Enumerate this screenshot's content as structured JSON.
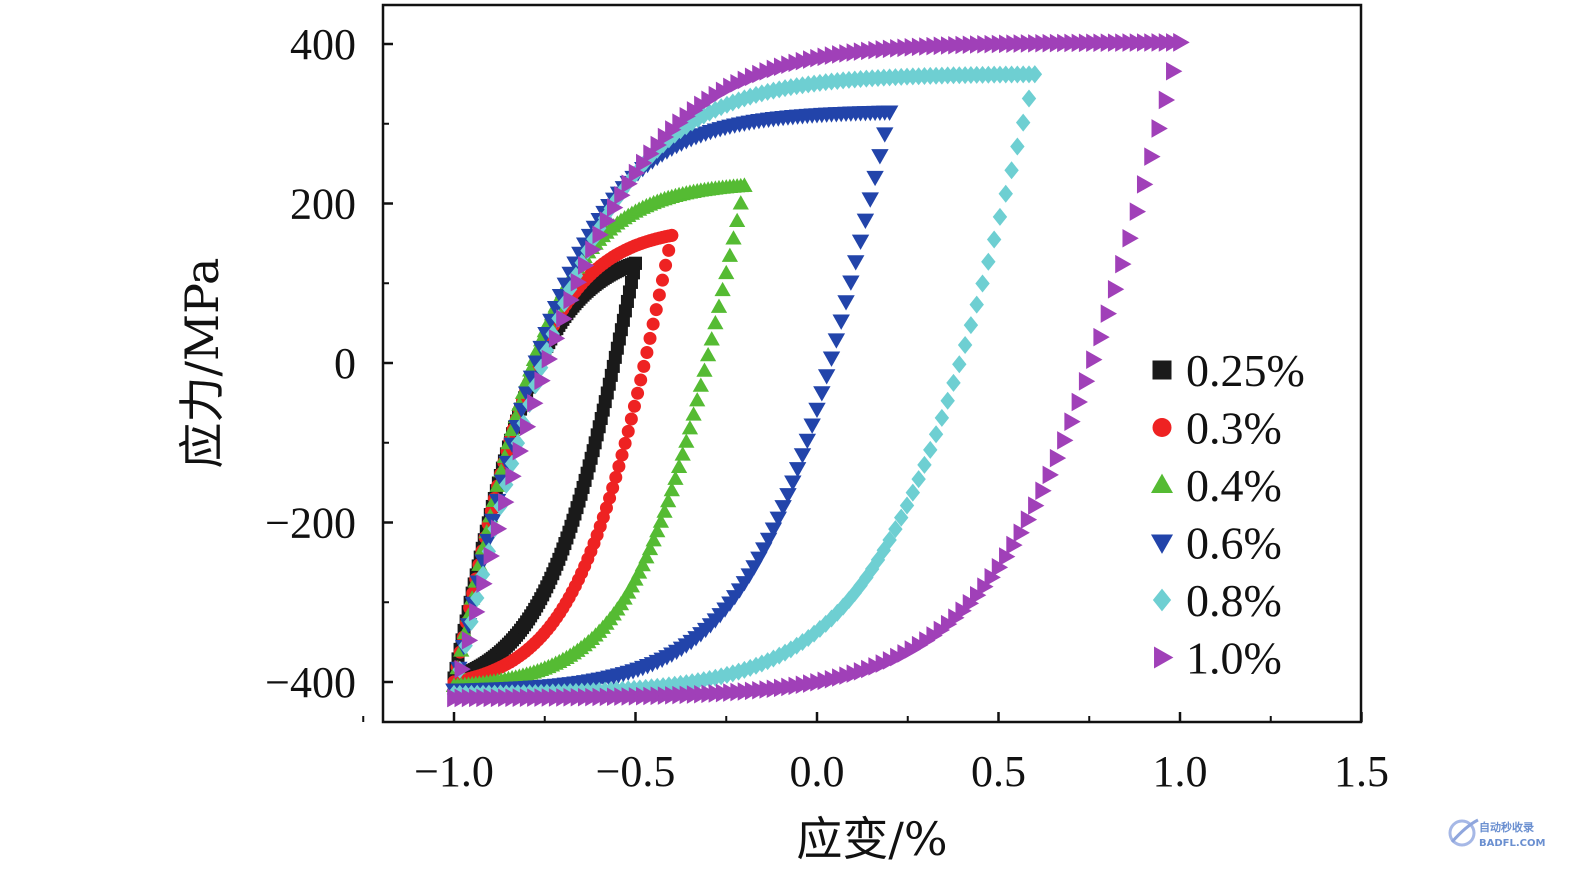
{
  "chart_data": {
    "type": "scatter",
    "xlabel": "应变/%",
    "ylabel": "应力/MPa",
    "xlim": [
      -1.2,
      1.5
    ],
    "ylim": [
      -450,
      450
    ],
    "x_ticks": [
      {
        "value": -1.0,
        "label": "−1.0"
      },
      {
        "value": -0.5,
        "label": "−0.5"
      },
      {
        "value": 0.0,
        "label": "0.0"
      },
      {
        "value": 0.5,
        "label": "0.5"
      },
      {
        "value": 1.0,
        "label": "1.0"
      },
      {
        "value": 1.5,
        "label": "1.5"
      }
    ],
    "y_ticks": [
      {
        "value": -400,
        "label": "−400"
      },
      {
        "value": -200,
        "label": "−200"
      },
      {
        "value": 0,
        "label": "0"
      },
      {
        "value": 200,
        "label": "200"
      },
      {
        "value": 400,
        "label": "400"
      }
    ],
    "legend_position": "lower-right",
    "grid": false,
    "series": [
      {
        "name": "0.25%",
        "marker": "square",
        "color": "#1a1a1a",
        "x_max": -0.5,
        "y_max": 125,
        "x_min": -1.0,
        "y_min": -395,
        "point_count": 90
      },
      {
        "name": "0.3%",
        "marker": "circle",
        "color": "#ee2222",
        "x_max": -0.4,
        "y_max": 160,
        "x_min": -1.0,
        "y_min": -400,
        "point_count": 70
      },
      {
        "name": "0.4%",
        "marker": "triangle-up",
        "color": "#55bb33",
        "x_max": -0.2,
        "y_max": 222,
        "x_min": -1.0,
        "y_min": -405,
        "point_count": 80
      },
      {
        "name": "0.6%",
        "marker": "triangle-down",
        "color": "#2244aa",
        "x_max": 0.2,
        "y_max": 315,
        "x_min": -1.0,
        "y_min": -410,
        "point_count": 90
      },
      {
        "name": "0.8%",
        "marker": "diamond",
        "color": "#6ecfd2",
        "x_max": 0.6,
        "y_max": 362,
        "x_min": -1.0,
        "y_min": -415,
        "point_count": 100
      },
      {
        "name": "1.0%",
        "marker": "triangle-right",
        "color": "#a040b8",
        "x_max": 1.0,
        "y_max": 402,
        "x_min": -1.0,
        "y_min": -420,
        "point_count": 100
      }
    ]
  },
  "watermark": {
    "line1": "自动秒收录",
    "line2": "BADFL.COM",
    "color": "#6a8fd0"
  }
}
